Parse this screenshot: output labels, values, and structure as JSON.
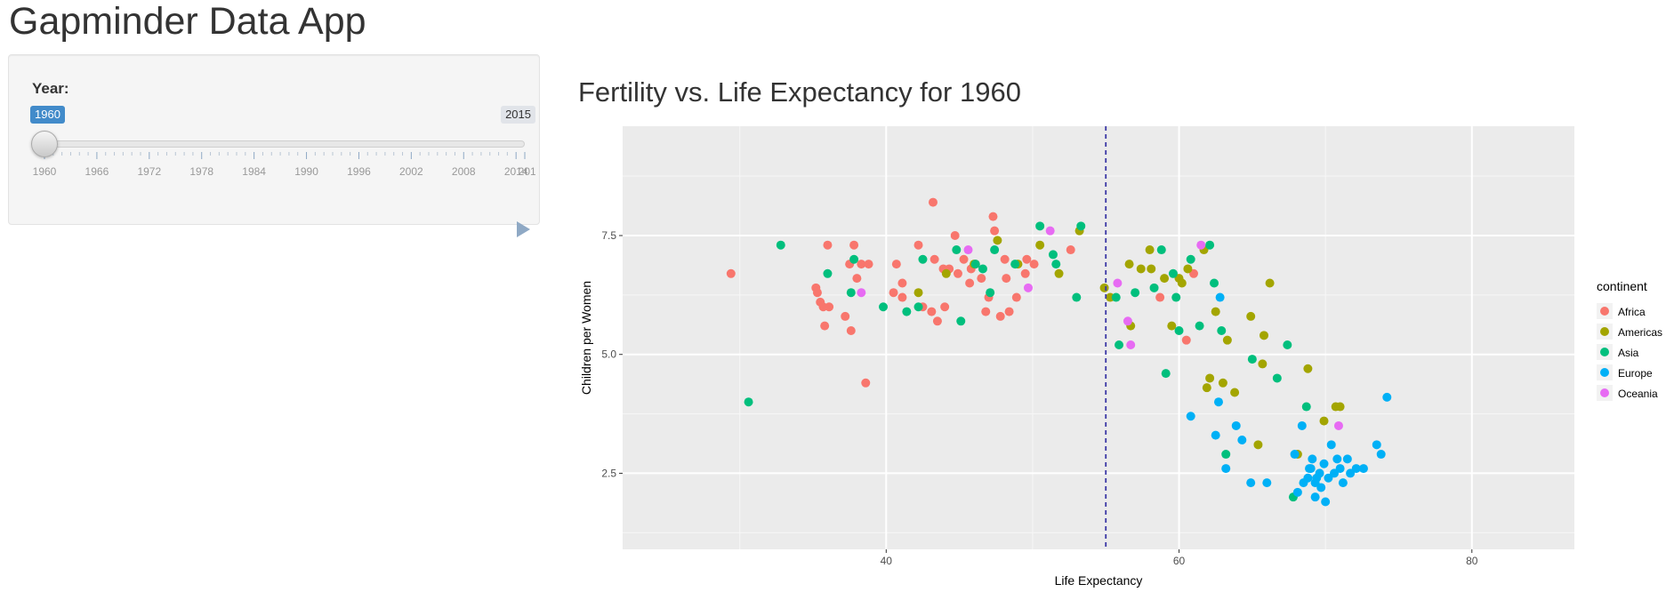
{
  "app": {
    "title": "Gapminder Data App"
  },
  "sidebar": {
    "slider": {
      "label": "Year:",
      "value": 1960,
      "min": 1960,
      "max": 2015,
      "value_label": "1960",
      "max_label": "2015",
      "ticks": [
        "1960",
        "1966",
        "1972",
        "1978",
        "1984",
        "1990",
        "1996",
        "2002",
        "2008",
        "2014",
        "2015"
      ],
      "major_tick_years": [
        1960,
        1966,
        1972,
        1978,
        1984,
        1990,
        1996,
        2002,
        2008,
        2014
      ],
      "accent_color": "#428bca",
      "play_icon": "play-icon"
    }
  },
  "chart_data": {
    "type": "scatter",
    "title": "Fertility vs. Life Expectancy for 1960",
    "xlabel": "Life Expectancy",
    "ylabel": "Children per Women",
    "xlim": [
      22,
      87
    ],
    "ylim": [
      0.9,
      9.8
    ],
    "xticks": [
      40,
      60,
      80
    ],
    "yticks": [
      2.5,
      5.0,
      7.5
    ],
    "xtick_labels": [
      "40",
      "60",
      "80"
    ],
    "ytick_labels": [
      "2.5",
      "5.0",
      "7.5"
    ],
    "grid": true,
    "background": "#ebebeb",
    "reference_line": {
      "axis": "x",
      "value": 55,
      "style": "dashed",
      "color": "#3a36a5"
    },
    "legend": {
      "title": "continent",
      "placement": "right",
      "entries": [
        "Africa",
        "Americas",
        "Asia",
        "Europe",
        "Oceania"
      ]
    },
    "series": [
      {
        "name": "Africa",
        "color": "#f8766d",
        "points": [
          [
            29.4,
            6.7
          ],
          [
            35.2,
            6.4
          ],
          [
            35.3,
            6.3
          ],
          [
            35.5,
            6.1
          ],
          [
            35.7,
            6.0
          ],
          [
            35.8,
            5.6
          ],
          [
            36.0,
            7.3
          ],
          [
            36.1,
            6.0
          ],
          [
            37.2,
            5.8
          ],
          [
            37.5,
            6.9
          ],
          [
            37.6,
            5.5
          ],
          [
            37.8,
            7.3
          ],
          [
            38.0,
            6.6
          ],
          [
            38.3,
            6.9
          ],
          [
            38.6,
            4.4
          ],
          [
            38.8,
            6.9
          ],
          [
            40.5,
            6.3
          ],
          [
            40.7,
            6.9
          ],
          [
            41.1,
            6.5
          ],
          [
            41.1,
            6.2
          ],
          [
            42.2,
            7.3
          ],
          [
            42.5,
            6.0
          ],
          [
            43.1,
            5.9
          ],
          [
            43.2,
            8.2
          ],
          [
            43.3,
            7.0
          ],
          [
            43.5,
            5.7
          ],
          [
            43.9,
            6.8
          ],
          [
            44.0,
            6.0
          ],
          [
            44.3,
            6.8
          ],
          [
            44.7,
            7.5
          ],
          [
            44.9,
            6.7
          ],
          [
            45.3,
            7.0
          ],
          [
            45.7,
            6.5
          ],
          [
            45.8,
            6.8
          ],
          [
            46.1,
            6.9
          ],
          [
            46.5,
            6.6
          ],
          [
            46.8,
            5.9
          ],
          [
            47.0,
            6.2
          ],
          [
            47.3,
            7.9
          ],
          [
            47.4,
            7.6
          ],
          [
            47.8,
            5.8
          ],
          [
            48.1,
            7.0
          ],
          [
            48.2,
            6.6
          ],
          [
            48.4,
            5.9
          ],
          [
            48.9,
            6.2
          ],
          [
            49.5,
            6.7
          ],
          [
            49.6,
            7.0
          ],
          [
            50.1,
            6.9
          ],
          [
            52.6,
            7.2
          ],
          [
            58.7,
            6.2
          ],
          [
            60.5,
            5.3
          ],
          [
            61.0,
            6.7
          ]
        ]
      },
      {
        "name": "Americas",
        "color": "#a3a500",
        "points": [
          [
            42.2,
            6.3
          ],
          [
            44.1,
            6.7
          ],
          [
            46.0,
            6.9
          ],
          [
            47.6,
            7.4
          ],
          [
            49.0,
            6.9
          ],
          [
            50.5,
            7.3
          ],
          [
            51.8,
            6.7
          ],
          [
            53.2,
            7.6
          ],
          [
            54.9,
            6.4
          ],
          [
            55.3,
            6.2
          ],
          [
            56.6,
            6.9
          ],
          [
            56.7,
            5.6
          ],
          [
            57.4,
            6.8
          ],
          [
            58.0,
            7.2
          ],
          [
            58.1,
            6.8
          ],
          [
            59.0,
            6.6
          ],
          [
            59.5,
            5.6
          ],
          [
            60.0,
            6.6
          ],
          [
            60.2,
            6.5
          ],
          [
            60.6,
            6.8
          ],
          [
            61.7,
            7.2
          ],
          [
            61.9,
            4.3
          ],
          [
            62.1,
            4.5
          ],
          [
            62.5,
            5.9
          ],
          [
            63.0,
            4.4
          ],
          [
            63.3,
            5.3
          ],
          [
            63.8,
            4.2
          ],
          [
            64.9,
            5.8
          ],
          [
            65.4,
            3.1
          ],
          [
            65.7,
            4.8
          ],
          [
            65.8,
            5.4
          ],
          [
            66.2,
            6.5
          ],
          [
            68.1,
            2.9
          ],
          [
            68.8,
            4.7
          ],
          [
            69.9,
            3.6
          ],
          [
            70.7,
            3.9
          ],
          [
            71.0,
            3.9
          ]
        ]
      },
      {
        "name": "Asia",
        "color": "#00bf7d",
        "points": [
          [
            30.6,
            4.0
          ],
          [
            32.8,
            7.3
          ],
          [
            36.0,
            6.7
          ],
          [
            37.6,
            6.3
          ],
          [
            37.8,
            7.0
          ],
          [
            39.8,
            6.0
          ],
          [
            41.4,
            5.9
          ],
          [
            42.2,
            6.0
          ],
          [
            42.5,
            7.0
          ],
          [
            44.8,
            7.2
          ],
          [
            45.1,
            5.7
          ],
          [
            46.1,
            6.9
          ],
          [
            46.6,
            6.8
          ],
          [
            47.1,
            6.3
          ],
          [
            47.4,
            7.2
          ],
          [
            48.8,
            6.9
          ],
          [
            50.5,
            7.7
          ],
          [
            51.4,
            7.1
          ],
          [
            51.6,
            6.9
          ],
          [
            53.0,
            6.2
          ],
          [
            53.3,
            7.7
          ],
          [
            55.7,
            6.2
          ],
          [
            55.9,
            5.2
          ],
          [
            57.0,
            6.3
          ],
          [
            58.3,
            6.4
          ],
          [
            58.8,
            7.2
          ],
          [
            59.1,
            4.6
          ],
          [
            59.6,
            6.7
          ],
          [
            59.8,
            6.2
          ],
          [
            60.0,
            5.5
          ],
          [
            60.8,
            7.0
          ],
          [
            61.4,
            5.6
          ],
          [
            62.1,
            7.3
          ],
          [
            62.4,
            6.5
          ],
          [
            62.9,
            5.5
          ],
          [
            63.2,
            2.9
          ],
          [
            65.0,
            4.9
          ],
          [
            66.7,
            4.5
          ],
          [
            67.4,
            5.2
          ],
          [
            67.8,
            2.0
          ],
          [
            68.7,
            3.9
          ]
        ]
      },
      {
        "name": "Europe",
        "color": "#00b0f6",
        "points": [
          [
            60.8,
            3.7
          ],
          [
            62.5,
            3.3
          ],
          [
            62.7,
            4.0
          ],
          [
            62.8,
            6.2
          ],
          [
            63.2,
            2.6
          ],
          [
            63.9,
            3.5
          ],
          [
            64.3,
            3.2
          ],
          [
            64.9,
            2.3
          ],
          [
            66.0,
            2.3
          ],
          [
            67.9,
            2.9
          ],
          [
            68.1,
            2.1
          ],
          [
            68.4,
            3.5
          ],
          [
            68.5,
            2.3
          ],
          [
            68.8,
            2.4
          ],
          [
            68.9,
            2.6
          ],
          [
            69.0,
            2.6
          ],
          [
            69.1,
            2.8
          ],
          [
            69.3,
            2.3
          ],
          [
            69.4,
            2.4
          ],
          [
            69.6,
            2.5
          ],
          [
            69.7,
            2.2
          ],
          [
            69.9,
            2.7
          ],
          [
            70.2,
            2.4
          ],
          [
            70.4,
            3.1
          ],
          [
            70.6,
            2.5
          ],
          [
            70.8,
            2.8
          ],
          [
            71.0,
            2.6
          ],
          [
            71.2,
            2.3
          ],
          [
            71.5,
            2.8
          ],
          [
            71.7,
            2.5
          ],
          [
            72.1,
            2.6
          ],
          [
            72.6,
            2.6
          ],
          [
            73.5,
            3.1
          ],
          [
            73.8,
            2.9
          ],
          [
            74.2,
            4.1
          ],
          [
            70.0,
            1.9
          ],
          [
            69.3,
            2.0
          ]
        ]
      },
      {
        "name": "Oceania",
        "color": "#e76bf3",
        "points": [
          [
            38.3,
            6.3
          ],
          [
            45.6,
            7.2
          ],
          [
            49.7,
            6.4
          ],
          [
            51.2,
            7.6
          ],
          [
            55.8,
            6.5
          ],
          [
            56.5,
            5.7
          ],
          [
            56.7,
            5.2
          ],
          [
            61.5,
            7.3
          ],
          [
            70.9,
            3.5
          ]
        ]
      }
    ]
  }
}
